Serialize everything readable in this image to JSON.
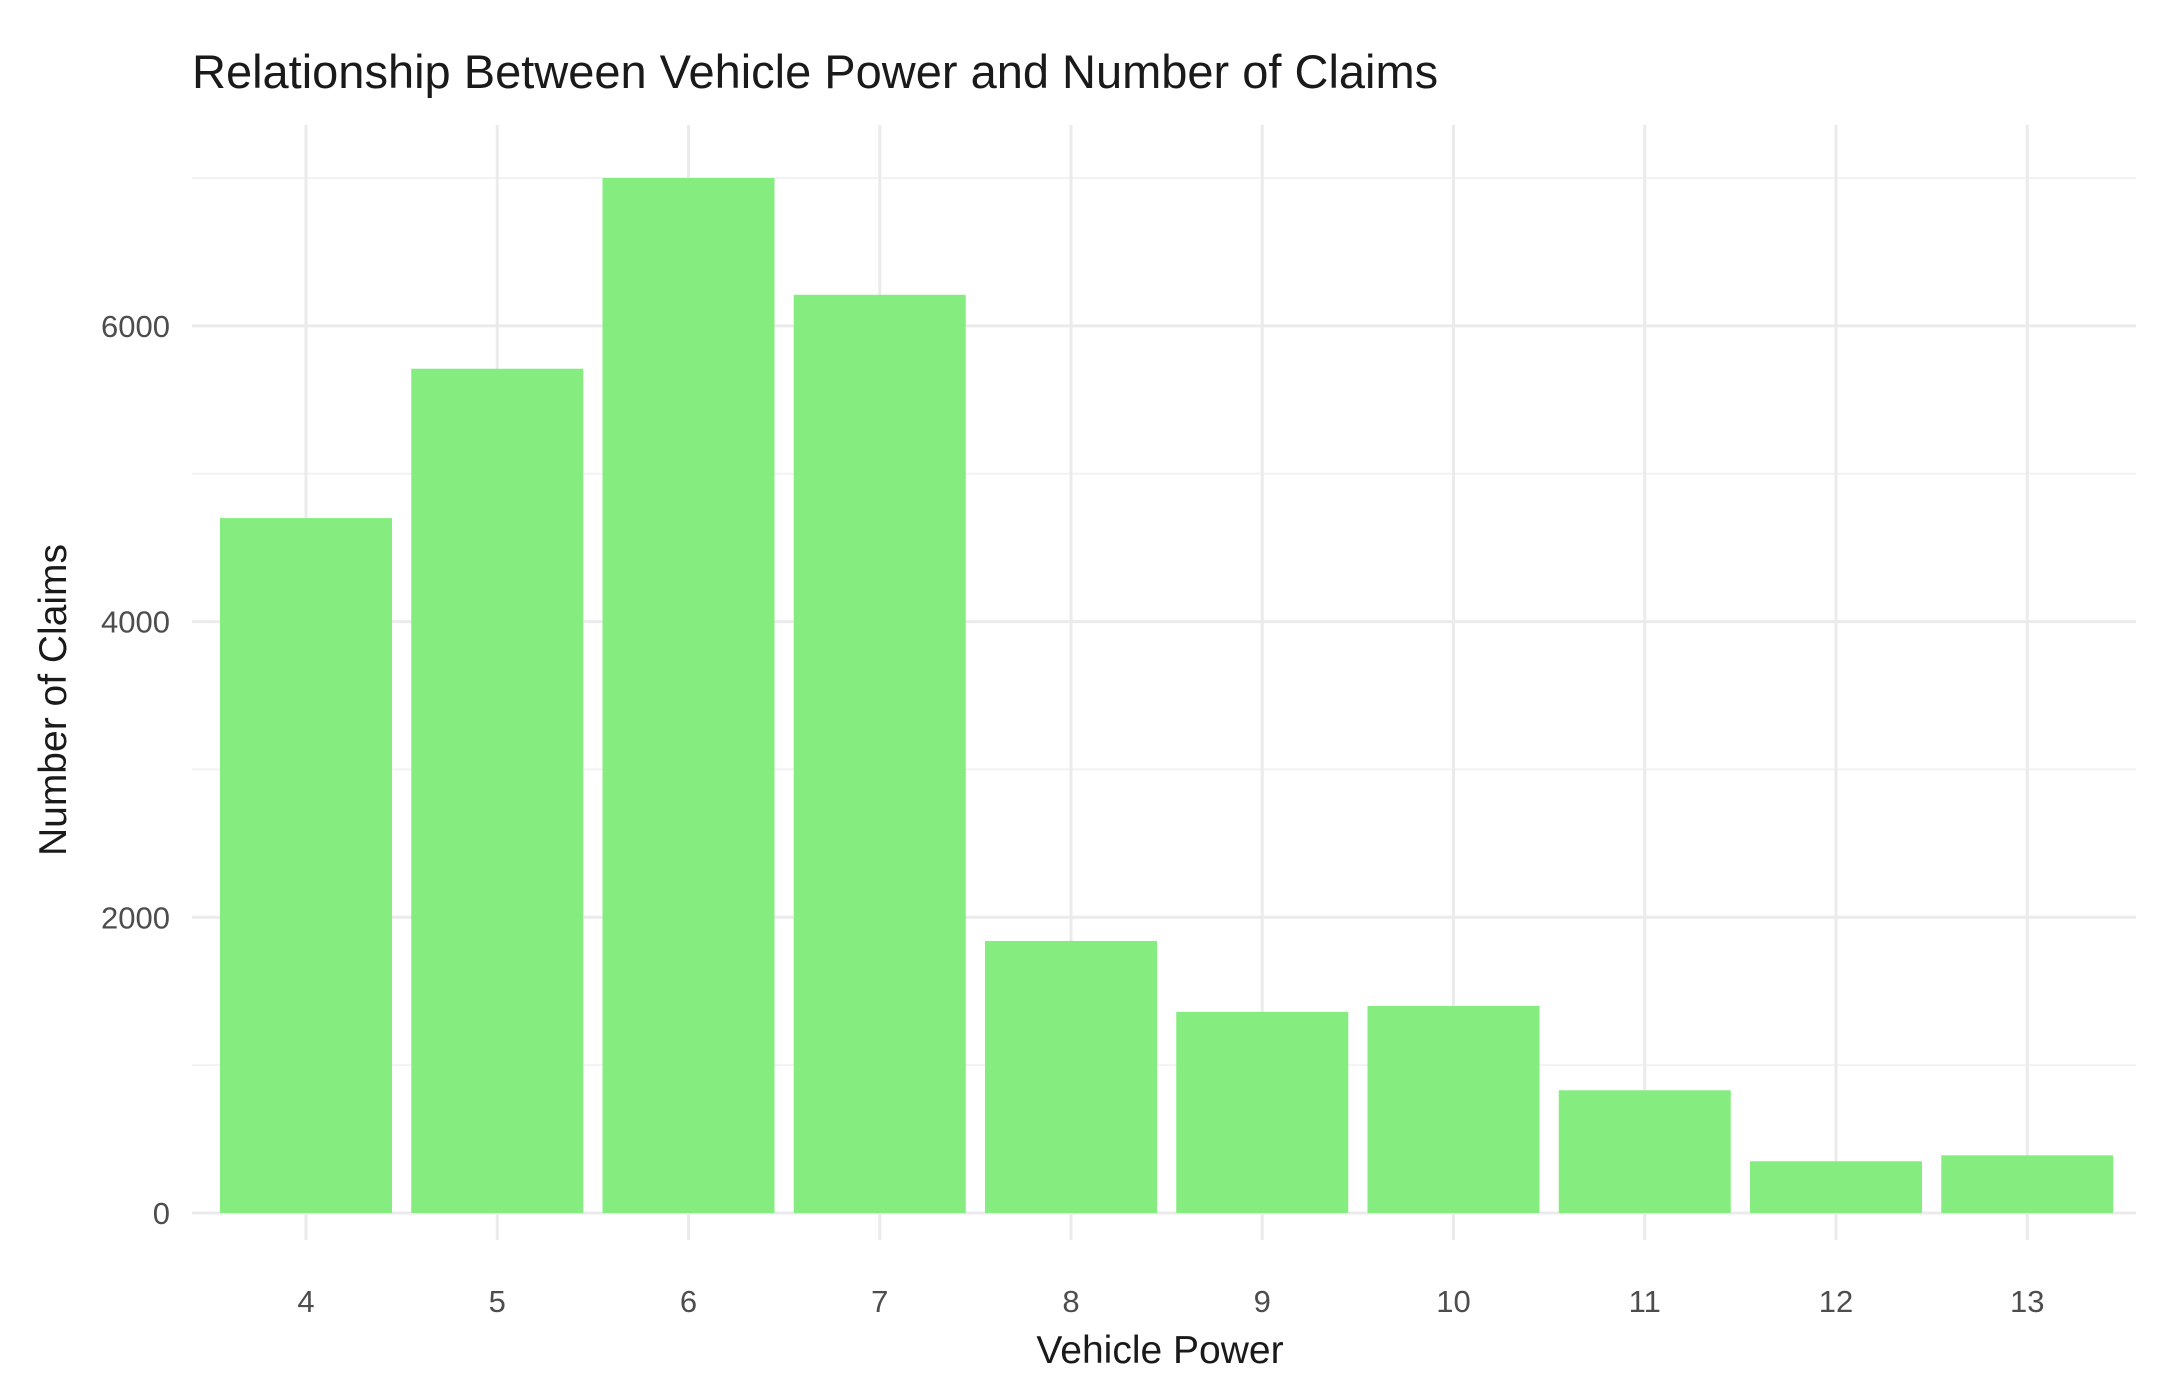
{
  "chart_data": {
    "type": "bar",
    "title": "Relationship Between Vehicle Power and Number of Claims",
    "xlabel": "Vehicle Power",
    "ylabel": "Number of Claims",
    "categories": [
      "4",
      "5",
      "6",
      "7",
      "8",
      "9",
      "10",
      "11",
      "12",
      "13"
    ],
    "values": [
      4700,
      5710,
      7000,
      6210,
      1840,
      1360,
      1400,
      830,
      350,
      390
    ],
    "ylim": [
      0,
      7000
    ],
    "y_ticks": [
      "0",
      "2000",
      "4000",
      "6000"
    ],
    "grid": true,
    "legend": "none",
    "bar_color": "#85ed7f"
  }
}
